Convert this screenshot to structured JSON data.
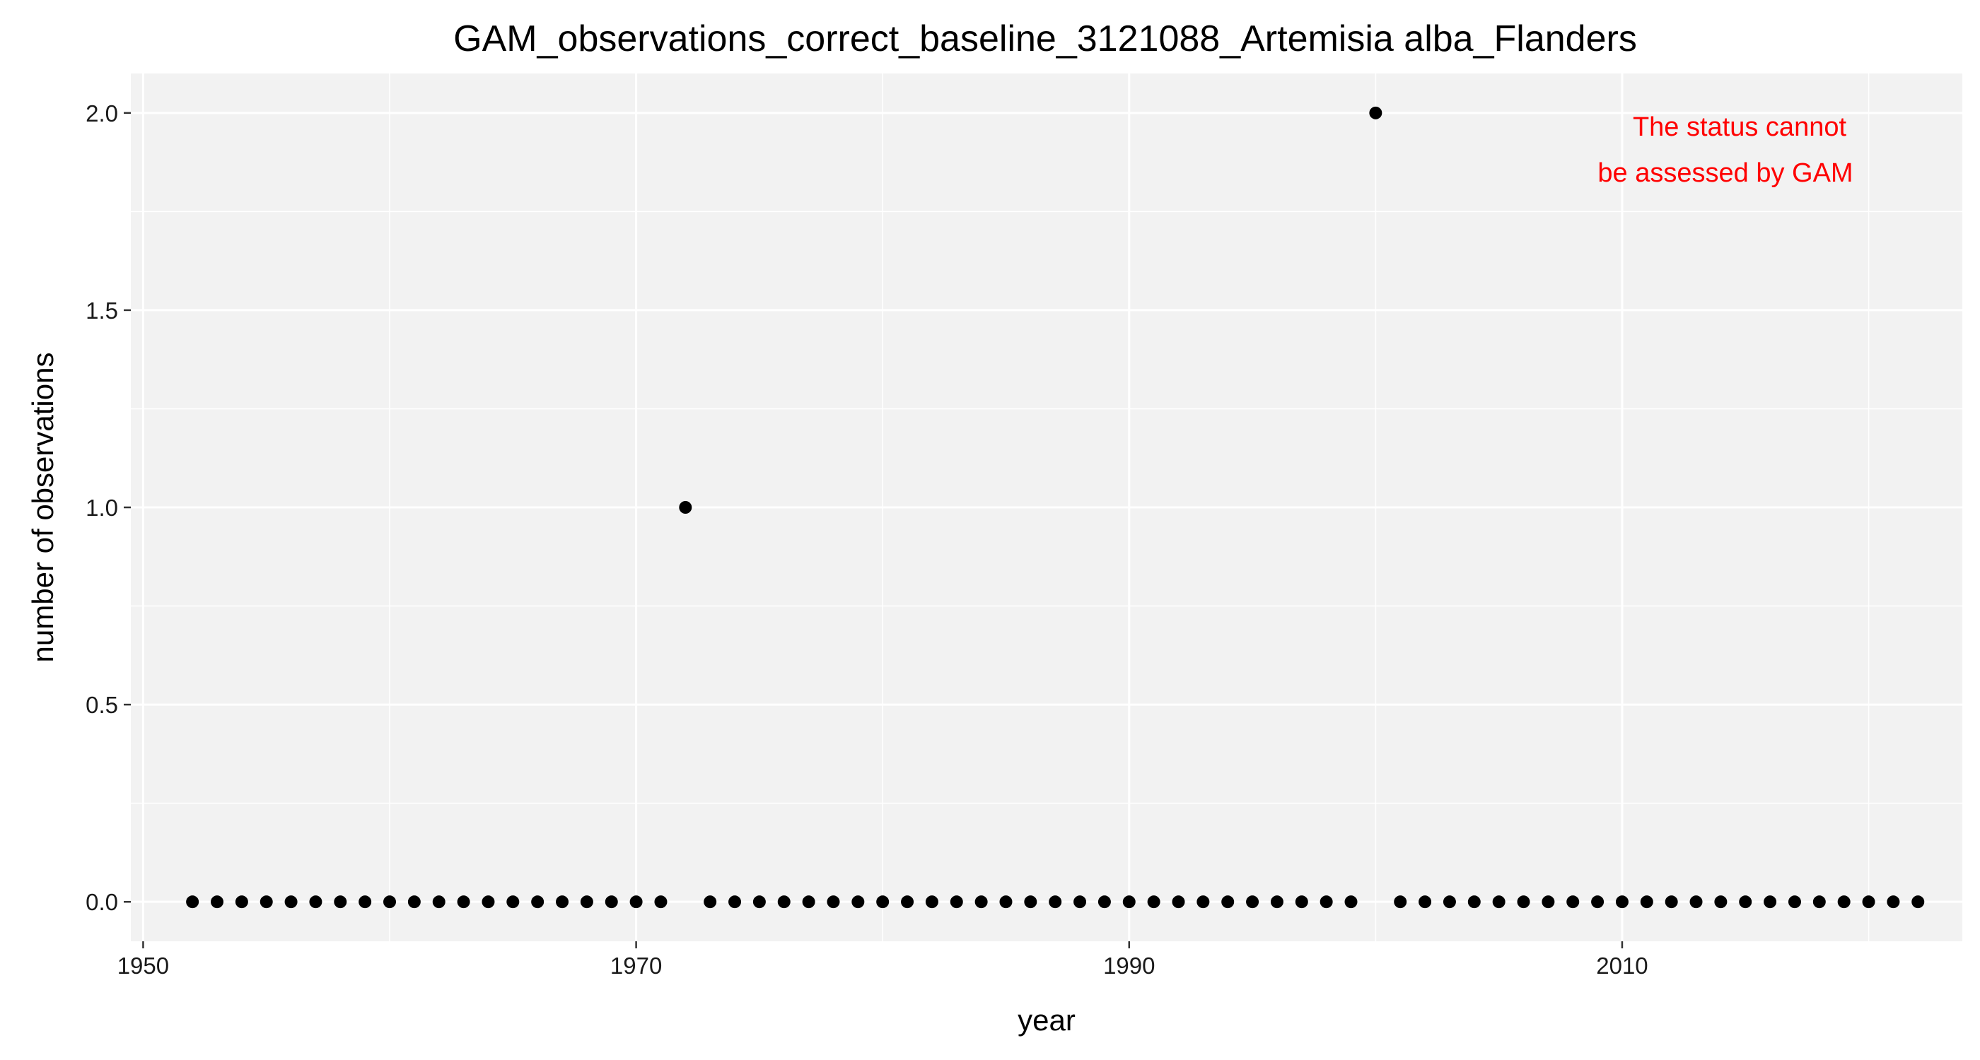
{
  "chart_data": {
    "type": "scatter",
    "title": "GAM_observations_correct_baseline_3121088_Artemisia alba_Flanders",
    "xlabel": "year",
    "ylabel": "number of observations",
    "xlim": [
      1949.5,
      2023.8
    ],
    "ylim": [
      -0.1,
      2.1
    ],
    "x_ticks": [
      1950,
      1970,
      1990,
      2010
    ],
    "x_tick_labels": [
      "1950",
      "1970",
      "1990",
      "2010"
    ],
    "y_ticks": [
      0.0,
      0.5,
      1.0,
      1.5,
      2.0
    ],
    "y_tick_labels": [
      "0.0",
      "0.5",
      "1.0",
      "1.5",
      "2.0"
    ],
    "grid": true,
    "legend": "none",
    "points": [
      {
        "x": 1952,
        "y": 0
      },
      {
        "x": 1953,
        "y": 0
      },
      {
        "x": 1954,
        "y": 0
      },
      {
        "x": 1955,
        "y": 0
      },
      {
        "x": 1956,
        "y": 0
      },
      {
        "x": 1957,
        "y": 0
      },
      {
        "x": 1958,
        "y": 0
      },
      {
        "x": 1959,
        "y": 0
      },
      {
        "x": 1960,
        "y": 0
      },
      {
        "x": 1961,
        "y": 0
      },
      {
        "x": 1962,
        "y": 0
      },
      {
        "x": 1963,
        "y": 0
      },
      {
        "x": 1964,
        "y": 0
      },
      {
        "x": 1965,
        "y": 0
      },
      {
        "x": 1966,
        "y": 0
      },
      {
        "x": 1967,
        "y": 0
      },
      {
        "x": 1968,
        "y": 0
      },
      {
        "x": 1969,
        "y": 0
      },
      {
        "x": 1970,
        "y": 0
      },
      {
        "x": 1971,
        "y": 0
      },
      {
        "x": 1972,
        "y": 1
      },
      {
        "x": 1973,
        "y": 0
      },
      {
        "x": 1974,
        "y": 0
      },
      {
        "x": 1975,
        "y": 0
      },
      {
        "x": 1976,
        "y": 0
      },
      {
        "x": 1977,
        "y": 0
      },
      {
        "x": 1978,
        "y": 0
      },
      {
        "x": 1979,
        "y": 0
      },
      {
        "x": 1980,
        "y": 0
      },
      {
        "x": 1981,
        "y": 0
      },
      {
        "x": 1982,
        "y": 0
      },
      {
        "x": 1983,
        "y": 0
      },
      {
        "x": 1984,
        "y": 0
      },
      {
        "x": 1985,
        "y": 0
      },
      {
        "x": 1986,
        "y": 0
      },
      {
        "x": 1987,
        "y": 0
      },
      {
        "x": 1988,
        "y": 0
      },
      {
        "x": 1989,
        "y": 0
      },
      {
        "x": 1990,
        "y": 0
      },
      {
        "x": 1991,
        "y": 0
      },
      {
        "x": 1992,
        "y": 0
      },
      {
        "x": 1993,
        "y": 0
      },
      {
        "x": 1994,
        "y": 0
      },
      {
        "x": 1995,
        "y": 0
      },
      {
        "x": 1996,
        "y": 0
      },
      {
        "x": 1997,
        "y": 0
      },
      {
        "x": 1998,
        "y": 0
      },
      {
        "x": 1999,
        "y": 0
      },
      {
        "x": 2000,
        "y": 2
      },
      {
        "x": 2001,
        "y": 0
      },
      {
        "x": 2002,
        "y": 0
      },
      {
        "x": 2003,
        "y": 0
      },
      {
        "x": 2004,
        "y": 0
      },
      {
        "x": 2005,
        "y": 0
      },
      {
        "x": 2006,
        "y": 0
      },
      {
        "x": 2007,
        "y": 0
      },
      {
        "x": 2008,
        "y": 0
      },
      {
        "x": 2009,
        "y": 0
      },
      {
        "x": 2010,
        "y": 0
      },
      {
        "x": 2011,
        "y": 0
      },
      {
        "x": 2012,
        "y": 0
      },
      {
        "x": 2013,
        "y": 0
      },
      {
        "x": 2014,
        "y": 0
      },
      {
        "x": 2015,
        "y": 0
      },
      {
        "x": 2016,
        "y": 0
      },
      {
        "x": 2017,
        "y": 0
      },
      {
        "x": 2018,
        "y": 0
      },
      {
        "x": 2019,
        "y": 0
      },
      {
        "x": 2020,
        "y": 0
      },
      {
        "x": 2021,
        "y": 0
      },
      {
        "x": 2022,
        "y": 0
      }
    ],
    "annotation": {
      "lines": [
        "The status cannot",
        "be assessed by GAM"
      ],
      "color": "#ff0000",
      "placement": "top-right"
    },
    "colors": {
      "panel_background": "#f2f2f2",
      "grid": "#ffffff",
      "point": "#000000"
    }
  }
}
